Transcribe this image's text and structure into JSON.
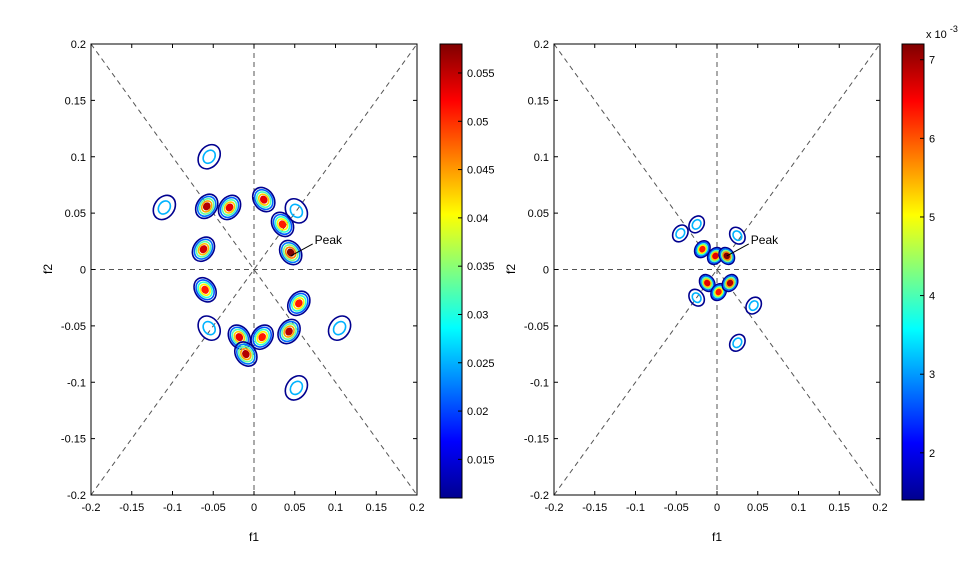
{
  "chart_data": [
    {
      "type": "heatmap",
      "subtype": "contour",
      "xlabel": "f1",
      "ylabel": "f2",
      "xlim": [
        -0.2,
        0.2
      ],
      "ylim": [
        -0.2,
        0.2
      ],
      "xticks": [
        "-0.2",
        "-0.15",
        "-0.1",
        "-0.05",
        "0",
        "0.05",
        "0.1",
        "0.15",
        "0.2"
      ],
      "yticks": [
        "0.2",
        "0.15",
        "0.1",
        "0.05",
        "0",
        "-0.05",
        "-0.1",
        "-0.15",
        "-0.2"
      ],
      "colorbar": {
        "range": [
          0.011,
          0.058
        ],
        "ticks": [
          "0.055",
          "0.05",
          "0.045",
          "0.04",
          "0.035",
          "0.03",
          "0.025",
          "0.02",
          "0.015"
        ],
        "exponent": ""
      },
      "annotation": "Peak",
      "peak_point": [
        0.045,
        0.012
      ],
      "blobs": [
        {
          "x": -0.058,
          "y": 0.056,
          "level": 0.95
        },
        {
          "x": -0.062,
          "y": 0.018,
          "level": 0.92
        },
        {
          "x": -0.03,
          "y": 0.055,
          "level": 0.9
        },
        {
          "x": 0.012,
          "y": 0.062,
          "level": 0.9
        },
        {
          "x": 0.035,
          "y": 0.04,
          "level": 0.85
        },
        {
          "x": 0.045,
          "y": 0.015,
          "level": 1.0
        },
        {
          "x": -0.06,
          "y": -0.018,
          "level": 0.85
        },
        {
          "x": -0.018,
          "y": -0.06,
          "level": 0.9
        },
        {
          "x": -0.01,
          "y": -0.075,
          "level": 0.95
        },
        {
          "x": 0.01,
          "y": -0.06,
          "level": 0.85
        },
        {
          "x": 0.043,
          "y": -0.055,
          "level": 0.95
        },
        {
          "x": 0.055,
          "y": -0.03,
          "level": 0.85
        },
        {
          "x": -0.055,
          "y": 0.1,
          "level": 0.3
        },
        {
          "x": -0.11,
          "y": 0.055,
          "level": 0.3
        },
        {
          "x": 0.052,
          "y": 0.052,
          "level": 0.3
        },
        {
          "x": -0.055,
          "y": -0.052,
          "level": 0.3
        },
        {
          "x": 0.105,
          "y": -0.052,
          "level": 0.3
        },
        {
          "x": 0.052,
          "y": -0.105,
          "level": 0.3
        }
      ]
    },
    {
      "type": "heatmap",
      "subtype": "contour",
      "xlabel": "f1",
      "ylabel": "f2",
      "xlim": [
        -0.2,
        0.2
      ],
      "ylim": [
        -0.2,
        0.2
      ],
      "xticks": [
        "-0.2",
        "-0.15",
        "-0.1",
        "-0.05",
        "0",
        "0.05",
        "0.1",
        "0.15",
        "0.2"
      ],
      "yticks": [
        "0.2",
        "0.15",
        "0.1",
        "0.05",
        "0",
        "-0.05",
        "-0.1",
        "-0.15",
        "-0.2"
      ],
      "colorbar": {
        "range": [
          1.4,
          7.2
        ],
        "ticks": [
          "7",
          "6",
          "5",
          "4",
          "3",
          "2"
        ],
        "exponent": "x 10",
        "exponent_power": "-3"
      },
      "annotation": "Peak",
      "peak_point": [
        0.012,
        0.012
      ],
      "blobs": [
        {
          "x": -0.018,
          "y": 0.018,
          "level": 0.85
        },
        {
          "x": -0.002,
          "y": 0.012,
          "level": 0.9
        },
        {
          "x": 0.012,
          "y": 0.012,
          "level": 1.0
        },
        {
          "x": -0.012,
          "y": -0.012,
          "level": 0.9
        },
        {
          "x": 0.002,
          "y": -0.02,
          "level": 0.85
        },
        {
          "x": 0.016,
          "y": -0.012,
          "level": 0.95
        },
        {
          "x": -0.025,
          "y": 0.04,
          "level": 0.3
        },
        {
          "x": -0.045,
          "y": 0.032,
          "level": 0.3
        },
        {
          "x": 0.025,
          "y": 0.03,
          "level": 0.3
        },
        {
          "x": -0.025,
          "y": -0.025,
          "level": 0.3
        },
        {
          "x": 0.045,
          "y": -0.032,
          "level": 0.3
        },
        {
          "x": 0.025,
          "y": -0.065,
          "level": 0.3
        }
      ]
    }
  ],
  "colors": {
    "jet": [
      "#00008f",
      "#0000ff",
      "#00ffff",
      "#ffff00",
      "#ff0000",
      "#800000"
    ],
    "guide": "#555555",
    "axis": "#000000"
  }
}
